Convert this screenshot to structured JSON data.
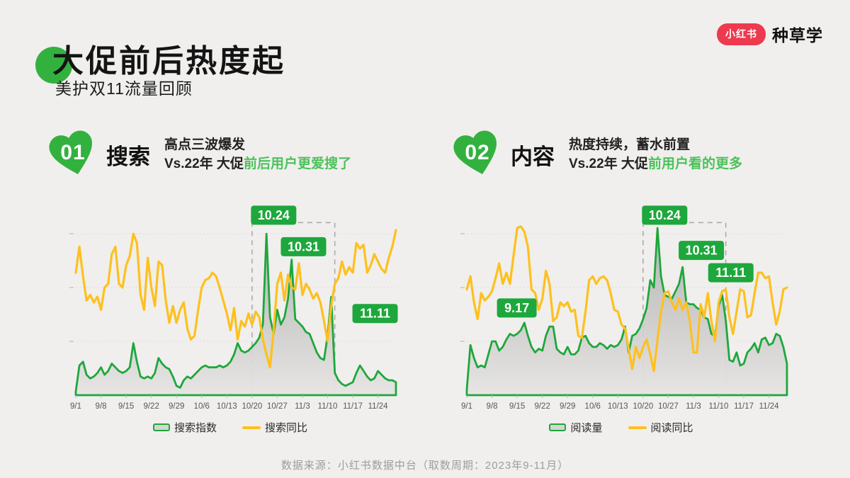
{
  "colors": {
    "background": "#f0efed",
    "green": "#1ea73c",
    "green_badge": "#1ea73c",
    "green_heart": "#33b13f",
    "green_text": "#4cc25b",
    "yellow": "#ffc01e",
    "logo_red": "#ee3a4f",
    "dashed_box": "#ababab",
    "area_fill_top": "#a9a9a9",
    "area_fill_bottom": "#e6e5e3",
    "axis_label": "#57565a",
    "footer_gray": "#9e9d9b"
  },
  "header": {
    "title": "大促前后热度起",
    "subtitle": "美护双11流量回顾"
  },
  "logo": {
    "pill_text": "小红书",
    "brand_text": "种草学"
  },
  "sections": [
    {
      "num": "01",
      "name": "搜索",
      "desc_line1": "高点三波爆发",
      "desc_line2_black": "Vs.22年 大促",
      "desc_line2_green": "前后用户更爱搜了"
    },
    {
      "num": "02",
      "name": "内容",
      "desc_line1": "热度持续，蓄水前置",
      "desc_line2_black": "Vs.22年 大促",
      "desc_line2_green": "前用户看的更多"
    }
  ],
  "footer": {
    "text": "数据来源：小红书数据中台（取数周期：2023年9-11月）"
  },
  "chart_data": [
    {
      "id": "s",
      "type": "area",
      "title": "搜索：搜索指数 vs 搜索同比（2023年9/1-11/29，日粒度）",
      "x_ticks": [
        "9/1",
        "9/8",
        "9/15",
        "9/22",
        "9/29",
        "10/6",
        "10/13",
        "10/20",
        "10/27",
        "11/3",
        "11/10",
        "11/17",
        "11/24"
      ],
      "ylim": [
        0,
        100
      ],
      "y_axis_labeled": false,
      "unit": "normalized 0-100 of plot height (no y-axis labels shown)",
      "layout": {
        "grid_v": [
          29,
          58,
          87
        ],
        "legend_position": "bottom"
      },
      "series": [
        {
          "name": "搜索指数",
          "style": "area-gray-fill-green-stroke",
          "values": [
            2,
            16,
            18,
            11,
            9,
            10,
            12,
            15,
            11,
            13,
            17,
            15,
            13,
            12,
            13,
            15,
            28,
            18,
            10,
            9,
            10,
            9,
            12,
            20,
            17,
            15,
            14,
            10,
            5,
            4,
            8,
            10,
            9,
            11,
            13,
            15,
            16,
            15,
            15,
            15,
            16,
            15,
            16,
            18,
            22,
            28,
            24,
            23,
            24,
            26,
            28,
            31,
            38,
            87,
            42,
            33,
            46,
            38,
            42,
            52,
            73,
            41,
            39,
            37,
            34,
            33,
            28,
            23,
            20,
            19,
            32,
            53,
            12,
            8,
            6,
            5,
            6,
            7,
            12,
            16,
            13,
            10,
            8,
            9,
            13,
            11,
            9,
            8,
            8,
            7
          ]
        },
        {
          "name": "搜索同比",
          "style": "line-yellow",
          "values": [
            66,
            80,
            64,
            51,
            54,
            50,
            53,
            46,
            58,
            60,
            76,
            80,
            60,
            58,
            70,
            75,
            87,
            82,
            54,
            46,
            74,
            58,
            48,
            72,
            70,
            51,
            39,
            48,
            39,
            46,
            50,
            36,
            30,
            32,
            46,
            58,
            62,
            63,
            66,
            64,
            58,
            51,
            44,
            35,
            47,
            30,
            40,
            37,
            44,
            38,
            45,
            42,
            30,
            22,
            15,
            35,
            60,
            66,
            51,
            65,
            58,
            57,
            71,
            54,
            60,
            57,
            52,
            55,
            50,
            40,
            29,
            48,
            60,
            63,
            72,
            65,
            69,
            66,
            82,
            79,
            81,
            66,
            70,
            76,
            72,
            68,
            66,
            74,
            80,
            89
          ]
        }
      ],
      "annotations": {
        "box": {
          "from_i": 49,
          "to_i": 72,
          "top_v": 93,
          "note": "dashed box 10/20-11/11"
        },
        "labels": [
          {
            "label": "10.24",
            "i": 55,
            "v": 97
          },
          {
            "label": "10.31",
            "i": 63.3,
            "v": 80
          },
          {
            "label": "11.11",
            "i": 83.2,
            "v": 44
          }
        ]
      }
    },
    {
      "id": "c",
      "type": "area",
      "title": "内容：阅读量 vs 阅读同比（2023年9/1-11/29，日粒度）",
      "x_ticks": [
        "9/1",
        "9/8",
        "9/15",
        "9/22",
        "9/29",
        "10/6",
        "10/13",
        "10/20",
        "10/27",
        "11/3",
        "11/10",
        "11/17",
        "11/24"
      ],
      "ylim": [
        0,
        100
      ],
      "y_axis_labeled": false,
      "unit": "normalized 0-100 of plot height (no y-axis labels shown)",
      "layout": {
        "grid_v": [
          29,
          58,
          87
        ],
        "legend_position": "bottom"
      },
      "series": [
        {
          "name": "阅读量",
          "style": "area-gray-fill-green-stroke",
          "values": [
            3,
            27,
            20,
            15,
            16,
            15,
            22,
            29,
            29,
            24,
            26,
            30,
            33,
            32,
            33,
            35,
            39,
            32,
            26,
            23,
            25,
            24,
            32,
            37,
            37,
            25,
            23,
            22,
            26,
            22,
            22,
            24,
            31,
            32,
            28,
            26,
            26,
            28,
            27,
            25,
            27,
            26,
            27,
            30,
            37,
            23,
            32,
            33,
            36,
            41,
            47,
            62,
            58,
            90,
            64,
            54,
            53,
            52,
            56,
            60,
            69,
            50,
            49,
            49,
            47,
            46,
            42,
            41,
            33,
            32,
            48,
            54,
            40,
            19,
            18,
            23,
            16,
            17,
            23,
            25,
            28,
            23,
            30,
            31,
            27,
            28,
            33,
            32,
            26,
            17
          ]
        },
        {
          "name": "阅读同比",
          "style": "line-yellow",
          "values": [
            57,
            64,
            50,
            41,
            55,
            51,
            53,
            56,
            63,
            71,
            60,
            66,
            60,
            75,
            90,
            91,
            88,
            80,
            57,
            55,
            46,
            52,
            67,
            60,
            40,
            42,
            50,
            48,
            50,
            45,
            46,
            32,
            31,
            45,
            62,
            64,
            60,
            63,
            64,
            62,
            55,
            46,
            45,
            38,
            36,
            25,
            14,
            26,
            20,
            26,
            30,
            22,
            13,
            30,
            45,
            55,
            56,
            50,
            46,
            52,
            46,
            50,
            40,
            23,
            23,
            49,
            42,
            55,
            40,
            29,
            50,
            56,
            57,
            42,
            33,
            45,
            57,
            56,
            42,
            43,
            55,
            66,
            66,
            63,
            64,
            50,
            38,
            45,
            57,
            58
          ]
        }
      ],
      "annotations": {
        "box": {
          "from_i": 49,
          "to_i": 72,
          "top_v": 93,
          "note": "dashed box 10/20-11/11"
        },
        "labels": [
          {
            "label": "9.17",
            "i": 13.9,
            "v": 47
          },
          {
            "label": "10.24",
            "i": 55,
            "v": 97
          },
          {
            "label": "10.31",
            "i": 65.2,
            "v": 78
          },
          {
            "label": "11.11",
            "i": 73.4,
            "v": 66
          }
        ]
      }
    }
  ]
}
